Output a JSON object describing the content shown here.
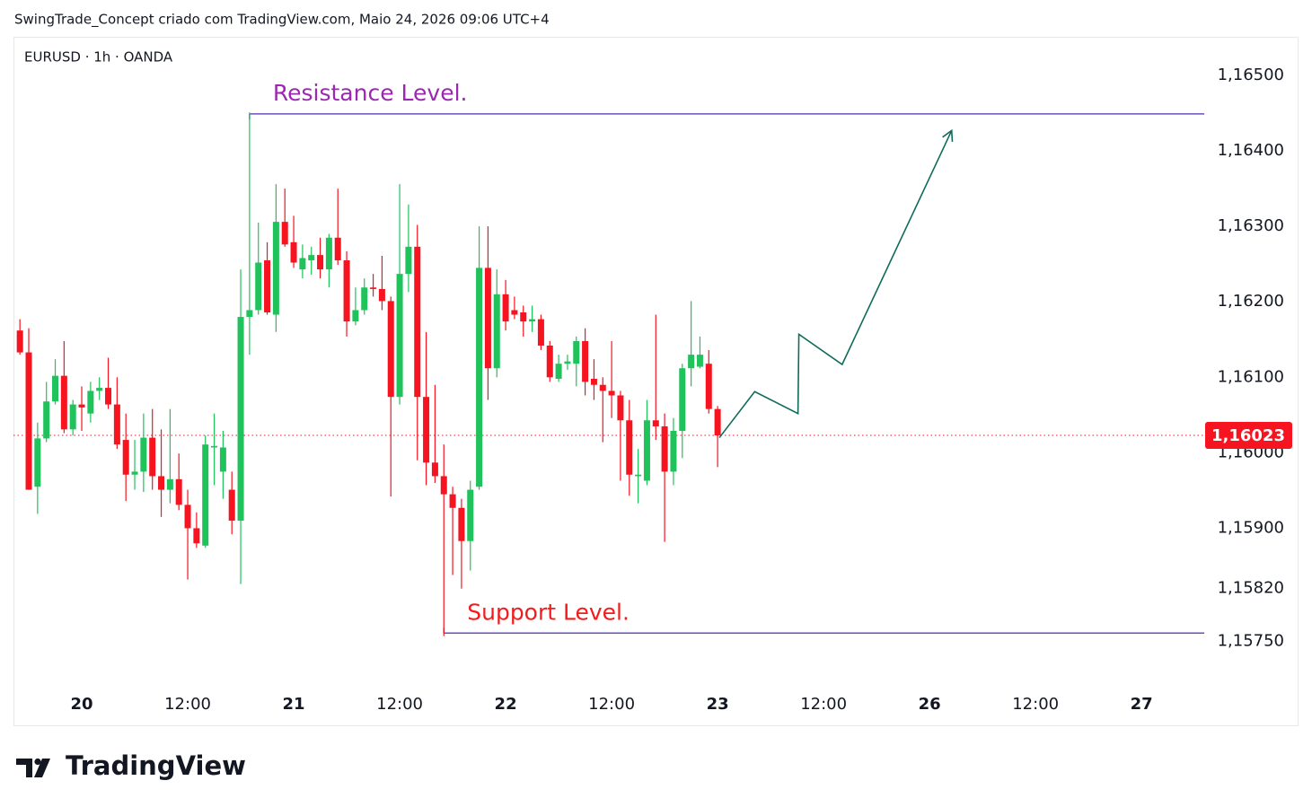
{
  "chart_data": {
    "type": "candlestick",
    "caption": "SwingTrade_Concept criado com TradingView.com, Maio 24, 2026 09:06 UTC+4",
    "title": "EURUSD · 1h · OANDA",
    "brand": "TradingView",
    "up_color": "#1fc25b",
    "down_color": "#f5141f",
    "grid": false,
    "x": [
      -7,
      -6,
      -5,
      -4,
      -3,
      -2,
      -1,
      0,
      1,
      2,
      3,
      4,
      5,
      6,
      7,
      8,
      9,
      10,
      11,
      12,
      13,
      14,
      15,
      16,
      17,
      18,
      19,
      20,
      21,
      22,
      23,
      24,
      25,
      26,
      27,
      28,
      29,
      30,
      31,
      32,
      33,
      34,
      35,
      36,
      37,
      38,
      39,
      40,
      41,
      42,
      43,
      44,
      45,
      46,
      47,
      48,
      49,
      50,
      51,
      52,
      53,
      54,
      55,
      56,
      57,
      58,
      59,
      60,
      61,
      62,
      63,
      64,
      65,
      66,
      67,
      68,
      69,
      70,
      71,
      72
    ],
    "open": [
      1.16162,
      1.16133,
      1.15955,
      1.16019,
      1.16068,
      1.16102,
      1.16031,
      1.16064,
      1.16052,
      1.16082,
      1.16086,
      1.16064,
      1.16017,
      1.15971,
      1.15975,
      1.1602,
      1.15969,
      1.15951,
      1.15965,
      1.15931,
      1.159,
      1.15877,
      1.16007,
      1.15975,
      1.15951,
      1.1591,
      1.1618,
      1.16189,
      1.16255,
      1.16183,
      1.16306,
      1.16279,
      1.16243,
      1.16255,
      1.16262,
      1.16243,
      1.16285,
      1.16255,
      1.16174,
      1.16189,
      1.16219,
      1.16217,
      1.16201,
      1.16074,
      1.16237,
      1.16273,
      1.16074,
      1.15987,
      1.15969,
      1.15945,
      1.15927,
      1.15883,
      1.15955,
      1.16245,
      1.16112,
      1.1621,
      1.16189,
      1.16186,
      1.16174,
      1.16177,
      1.16142,
      1.16098,
      1.16118,
      1.16118,
      1.16148,
      1.16098,
      1.1609,
      1.16082,
      1.16076,
      1.16043,
      1.15969,
      1.15963,
      1.16043,
      1.16035,
      1.15975,
      1.16029,
      1.16112,
      1.16114,
      1.16118,
      1.16058
    ],
    "high": [
      1.16177,
      1.16165,
      1.1604,
      1.16094,
      1.16124,
      1.16148,
      1.1607,
      1.16088,
      1.16094,
      1.161,
      1.16126,
      1.161,
      1.16052,
      1.16017,
      1.16052,
      1.16058,
      1.16031,
      1.16058,
      1.15999,
      1.15951,
      1.15921,
      1.16023,
      1.16052,
      1.16029,
      1.15975,
      1.16243,
      1.16451,
      1.16305,
      1.16279,
      1.16356,
      1.1635,
      1.16314,
      1.16276,
      1.16273,
      1.16285,
      1.1629,
      1.1635,
      1.16267,
      1.16219,
      1.16231,
      1.16237,
      1.16261,
      1.16207,
      1.16356,
      1.16329,
      1.16302,
      1.1616,
      1.1609,
      1.16011,
      1.15955,
      1.15939,
      1.15963,
      1.163,
      1.163,
      1.16243,
      1.16229,
      1.16207,
      1.16195,
      1.16195,
      1.16183,
      1.16148,
      1.1613,
      1.1613,
      1.16154,
      1.16165,
      1.16124,
      1.161,
      1.16148,
      1.16082,
      1.1607,
      1.16005,
      1.1607,
      1.16183,
      1.16052,
      1.16046,
      1.16118,
      1.16201,
      1.16154,
      1.16136,
      1.16062
    ],
    "low": [
      1.1613,
      1.15951,
      1.15919,
      1.16014,
      1.16064,
      1.16026,
      1.16023,
      1.16029,
      1.1604,
      1.1607,
      1.16058,
      1.16005,
      1.15936,
      1.15951,
      1.15948,
      1.15951,
      1.15915,
      1.15933,
      1.15924,
      1.15832,
      1.15874,
      1.15874,
      1.15957,
      1.15939,
      1.15892,
      1.15826,
      1.1613,
      1.16183,
      1.16183,
      1.1616,
      1.16273,
      1.16245,
      1.16231,
      1.16236,
      1.16231,
      1.16219,
      1.16249,
      1.16154,
      1.16169,
      1.16183,
      1.16207,
      1.16189,
      1.15942,
      1.16064,
      1.16213,
      1.1599,
      1.15957,
      1.1596,
      1.15757,
      1.15838,
      1.1582,
      1.15844,
      1.15951,
      1.1607,
      1.161,
      1.16162,
      1.16177,
      1.16154,
      1.1616,
      1.16136,
      1.16094,
      1.16094,
      1.1611,
      1.16088,
      1.16076,
      1.1607,
      1.16014,
      1.16046,
      1.15963,
      1.15943,
      1.15933,
      1.15957,
      1.16017,
      1.15882,
      1.15957,
      1.15993,
      1.16088,
      1.16112,
      1.16052,
      1.15981
    ],
    "close": [
      1.16133,
      1.15951,
      1.16019,
      1.16068,
      1.16102,
      1.16031,
      1.16064,
      1.1606,
      1.16082,
      1.16086,
      1.16064,
      1.16011,
      1.15971,
      1.15975,
      1.1602,
      1.15969,
      1.15951,
      1.15965,
      1.15931,
      1.159,
      1.1588,
      1.16011,
      1.16009,
      1.16007,
      1.1591,
      1.1618,
      1.16189,
      1.16252,
      1.16186,
      1.16306,
      1.16276,
      1.16252,
      1.16258,
      1.16262,
      1.16243,
      1.16285,
      1.16255,
      1.16174,
      1.16189,
      1.16219,
      1.16217,
      1.16201,
      1.16074,
      1.16237,
      1.16273,
      1.16074,
      1.15987,
      1.15969,
      1.15945,
      1.15927,
      1.15883,
      1.15951,
      1.16245,
      1.16112,
      1.1621,
      1.16174,
      1.16183,
      1.16174,
      1.16177,
      1.16142,
      1.161,
      1.16118,
      1.16121,
      1.16148,
      1.16094,
      1.1609,
      1.16082,
      1.16076,
      1.16043,
      1.15971,
      1.15971,
      1.16043,
      1.16035,
      1.15975,
      1.16029,
      1.16112,
      1.1613,
      1.1613,
      1.16058,
      1.16023
    ],
    "xlim": [
      -7.73,
      127.1
    ],
    "xticks": [
      {
        "value": 0,
        "label": "20"
      },
      {
        "value": 12,
        "label": "12:00"
      },
      {
        "value": 24,
        "label": "21"
      },
      {
        "value": 36,
        "label": "12:00"
      },
      {
        "value": 48,
        "label": "22"
      },
      {
        "value": 60,
        "label": "12:00"
      },
      {
        "value": 72,
        "label": "23"
      },
      {
        "value": 84,
        "label": "12:00"
      },
      {
        "value": 96,
        "label": "26"
      },
      {
        "value": 108,
        "label": "12:00"
      },
      {
        "value": 120,
        "label": "27"
      }
    ],
    "ylim": [
      1.1569,
      1.1655
    ],
    "yticks": [
      {
        "value": 1.165,
        "label": "1,16500"
      },
      {
        "value": 1.164,
        "label": "1,16400"
      },
      {
        "value": 1.163,
        "label": "1,16300"
      },
      {
        "value": 1.162,
        "label": "1,16200"
      },
      {
        "value": 1.161,
        "label": "1,16100"
      },
      {
        "value": 1.16,
        "label": "1,16000"
      },
      {
        "value": 1.159,
        "label": "1,15900"
      },
      {
        "value": 1.1582,
        "label": "1,15820"
      },
      {
        "value": 1.1575,
        "label": "1,15750"
      }
    ],
    "last_price": {
      "value": 1.16023,
      "label": "1,16023",
      "color": "#f5141f"
    },
    "annotations": [
      {
        "label": "Resistance Level.",
        "x": 19,
        "value": 1.16449,
        "color": "#9c27b0",
        "line_color": "#6b4fbb"
      },
      {
        "label": "Support Level.",
        "x": 41,
        "value": 1.15761,
        "color": "#f21c1c",
        "line_color": "#6b4fbb"
      }
    ],
    "projection": {
      "x": [
        72.2,
        76.2,
        81.1,
        81.2,
        86.1,
        98.5
      ],
      "values": [
        1.1602,
        1.16081,
        1.16052,
        1.16157,
        1.16117,
        1.16427
      ],
      "color": "#0f6b5a"
    }
  }
}
